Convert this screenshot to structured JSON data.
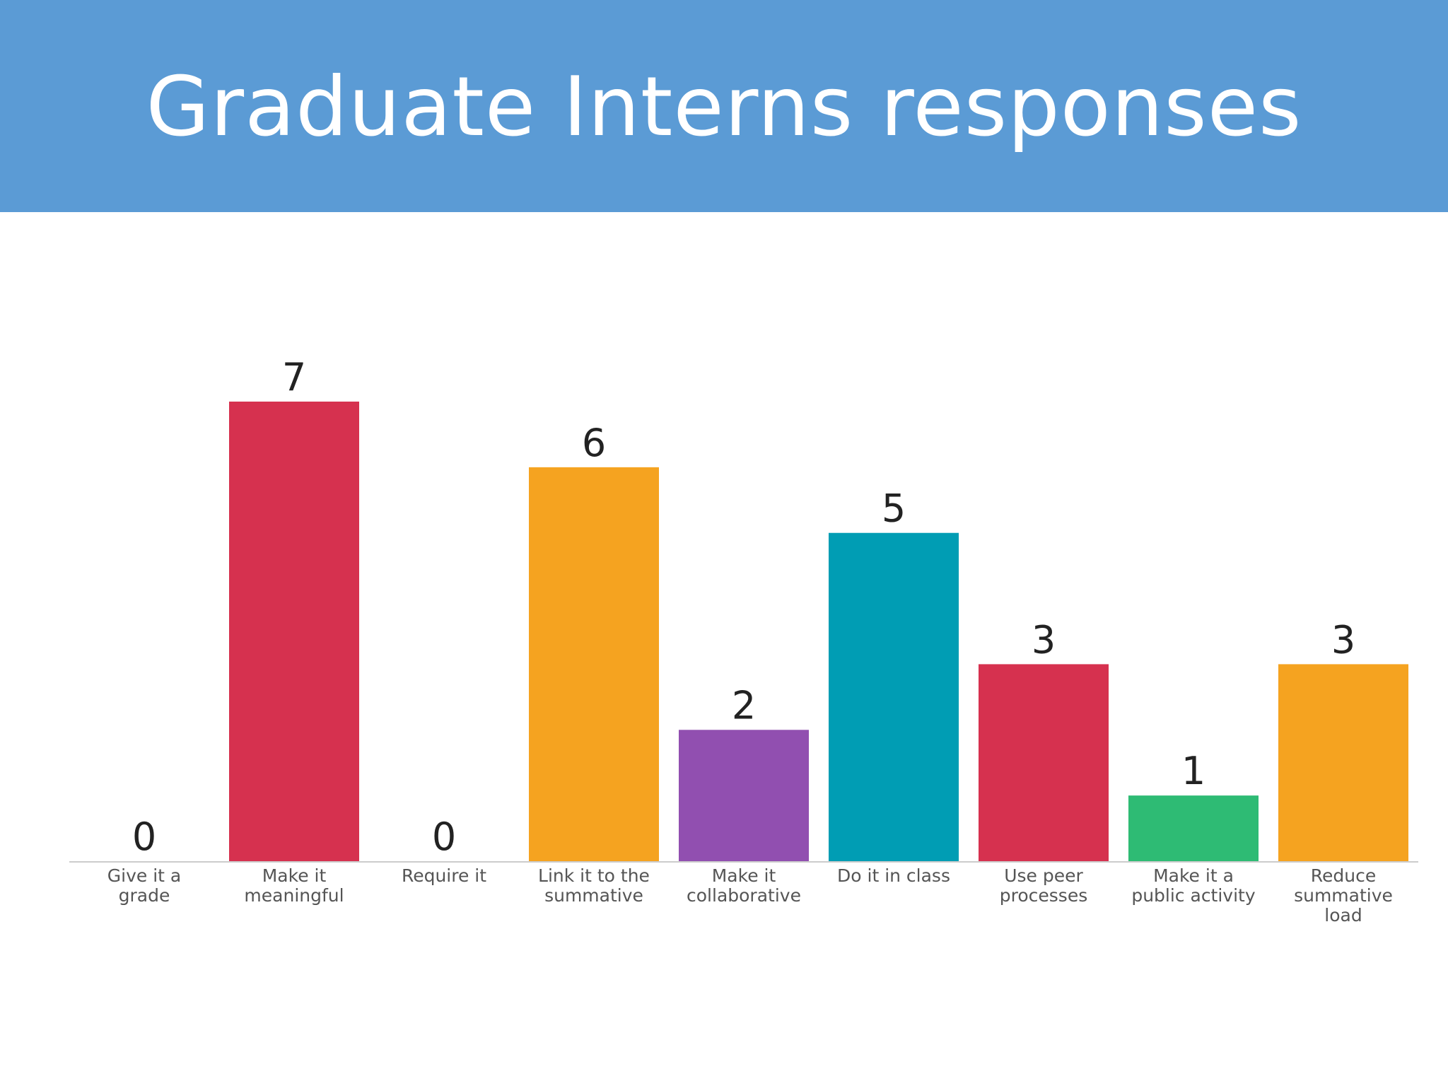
{
  "slide": {
    "title": "Graduate Interns responses",
    "banner_color": "#5b9bd5"
  },
  "chart_data": {
    "type": "bar",
    "title": "",
    "xlabel": "",
    "ylabel": "",
    "ylim": [
      0,
      7
    ],
    "grid": false,
    "legend": "none",
    "categories": [
      "Give it a grade",
      "Make it meaningful",
      "Require it",
      "Link it to the summative",
      "Make it collaborative",
      "Do it in class",
      "Use peer processes",
      "Make it a public activity",
      "Reduce summative load"
    ],
    "category_label_lines": [
      [
        "Give it a",
        "grade"
      ],
      [
        "Make it",
        "meaningful"
      ],
      [
        "Require it"
      ],
      [
        "Link it to the",
        "summative"
      ],
      [
        "Make it",
        "collaborative"
      ],
      [
        "Do it in class"
      ],
      [
        "Use peer",
        "processes"
      ],
      [
        "Make it a",
        "public activity"
      ],
      [
        "Reduce",
        "summative",
        "load"
      ]
    ],
    "values": [
      0,
      7,
      0,
      6,
      2,
      5,
      3,
      1,
      3
    ],
    "bar_colors": [
      "#d6314f",
      "#d6314f",
      "#f5a320",
      "#f5a320",
      "#914fb0",
      "#009db4",
      "#d6314f",
      "#2ebb74",
      "#f5a320"
    ],
    "axis_color": "#cccccc"
  }
}
